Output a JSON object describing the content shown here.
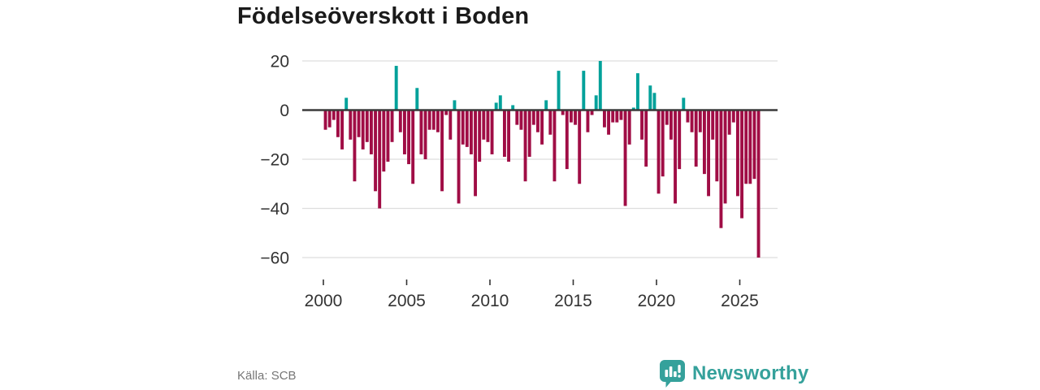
{
  "title": "Födelseöverskott i Boden",
  "source": "Källa: SCB",
  "brand": {
    "name": "Newsworthy"
  },
  "colors": {
    "positive": "#00a19a",
    "negative": "#a00d45",
    "brand_teal": "#35a19b",
    "zero_line": "#3a3a3a",
    "gridline": "#dedede",
    "axis_text": "#333333",
    "title_text": "#1a1a1a",
    "source_text": "#767676"
  },
  "chart_data": {
    "type": "bar",
    "title": "Födelseöverskott i Boden",
    "xlabel": "",
    "ylabel": "",
    "frequency": "quarterly",
    "start_period": "2000Q1",
    "end_period": "2026Q1",
    "grid": true,
    "ylim": [
      -63,
      24
    ],
    "x_tick_years": [
      2000,
      2005,
      2010,
      2015,
      2020,
      2025
    ],
    "y_ticks": [
      {
        "value": 20,
        "label": "20"
      },
      {
        "value": 0,
        "label": "0"
      },
      {
        "value": -20,
        "label": "−20"
      },
      {
        "value": -40,
        "label": "−40"
      },
      {
        "value": -60,
        "label": "−60"
      }
    ],
    "series": [
      {
        "name": "Födelseöverskott",
        "values": [
          -8,
          -7,
          -4,
          -11,
          -16,
          5,
          -12,
          -29,
          -11,
          -16,
          -13,
          -18,
          -33,
          -40,
          -25,
          -21,
          -13,
          18,
          -9,
          -18,
          -22,
          -30,
          9,
          -18,
          -20,
          -8,
          -8,
          -9,
          -33,
          -2,
          -12,
          4,
          -38,
          -14,
          -15,
          -18,
          -35,
          -21,
          -12,
          -13,
          -18,
          3,
          6,
          -19,
          -21,
          2,
          -6,
          -8,
          -29,
          -19,
          -6,
          -9,
          -14,
          4,
          -10,
          -29,
          16,
          -2,
          -24,
          -5,
          -6,
          -30,
          16,
          -9,
          -2,
          6,
          20,
          -7,
          -10,
          -5,
          -5,
          -4,
          -39,
          -14,
          1,
          15,
          -12,
          -23,
          10,
          7,
          -34,
          -27,
          -6,
          -12,
          -38,
          -24,
          5,
          -5,
          -9,
          -23,
          -9,
          -26,
          -35,
          -12,
          -29,
          -48,
          -38,
          -10,
          -5,
          -35,
          -44,
          -30,
          -30,
          -28,
          -60
        ]
      }
    ]
  }
}
